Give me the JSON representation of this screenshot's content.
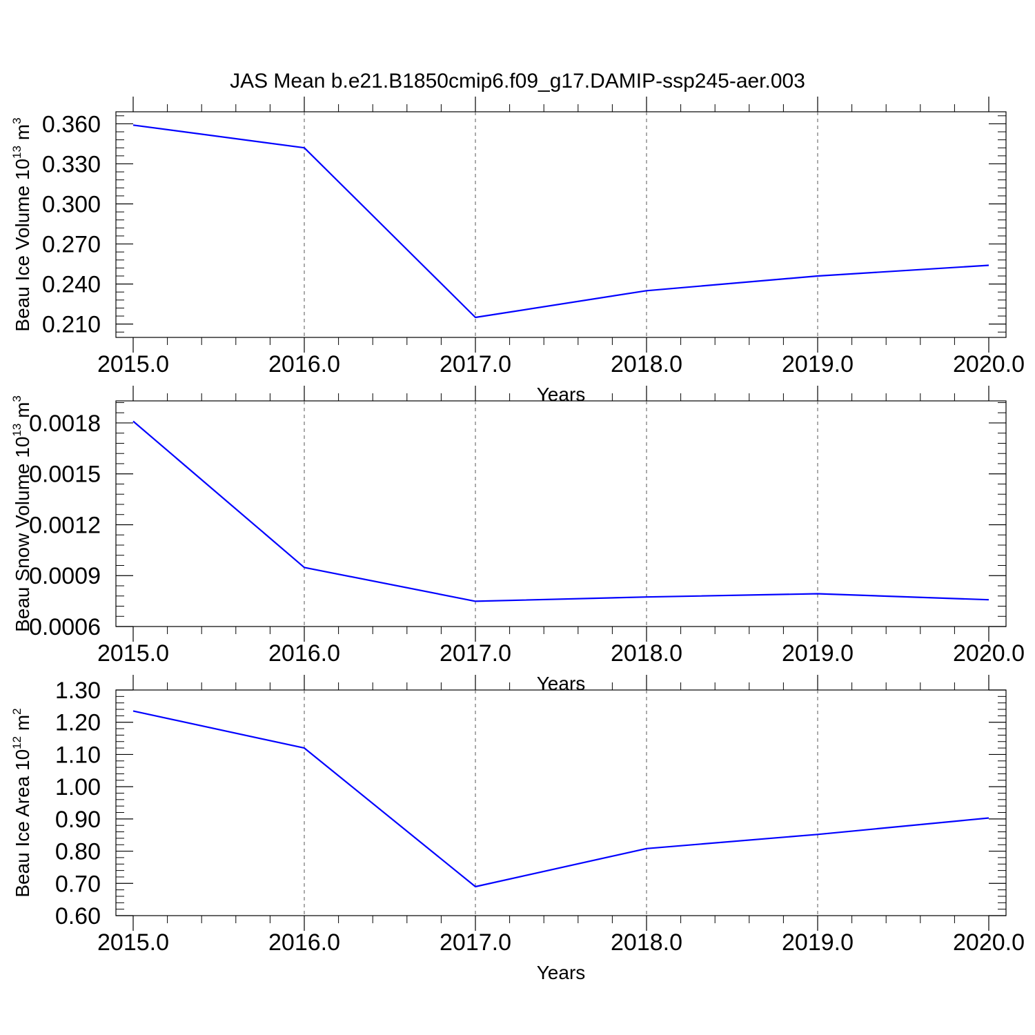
{
  "title": "JAS Mean b.e21.B1850cmip6.f09_g17.DAMIP-ssp245-aer.003",
  "colors": {
    "line": "#0000ff",
    "axis": "#000000",
    "grid": "#555555"
  },
  "chart_data": [
    {
      "type": "line",
      "ylabel_main": "Beau Ice Volume 10",
      "ylabel_exp": "13",
      "ylabel_unit": "m",
      "ylabel_unit_exp": "3",
      "xlabel": "Years",
      "xlim": [
        2015.0,
        2020.0
      ],
      "ylim": [
        0.2,
        0.369
      ],
      "x_ticks": [
        "2015.0",
        "2016.0",
        "2017.0",
        "2018.0",
        "2019.0",
        "2020.0"
      ],
      "y_ticks": [
        "0.210",
        "0.240",
        "0.270",
        "0.300",
        "0.330",
        "0.360"
      ],
      "grid_x": true,
      "series": [
        {
          "x": [
            2015,
            2016,
            2017,
            2018,
            2019,
            2020
          ],
          "y": [
            0.359,
            0.342,
            0.215,
            0.235,
            0.246,
            0.254
          ]
        }
      ]
    },
    {
      "type": "line",
      "ylabel_main": "Beau Snow Volume 10",
      "ylabel_exp": "13",
      "ylabel_unit": "m",
      "ylabel_unit_exp": "3",
      "xlabel": "Years",
      "xlim": [
        2015.0,
        2020.0
      ],
      "ylim": [
        0.0006,
        0.00193
      ],
      "x_ticks": [
        "2015.0",
        "2016.0",
        "2017.0",
        "2018.0",
        "2019.0",
        "2020.0"
      ],
      "y_ticks": [
        "0.0006",
        "0.0009",
        "0.0012",
        "0.0015",
        "0.0018"
      ],
      "grid_x": true,
      "series": [
        {
          "x": [
            2015,
            2016,
            2017,
            2018,
            2019,
            2020
          ],
          "y": [
            0.00181,
            0.000948,
            0.000749,
            0.000774,
            0.000793,
            0.000758
          ]
        }
      ]
    },
    {
      "type": "line",
      "ylabel_main": "Beau Ice Area 10",
      "ylabel_exp": "12",
      "ylabel_unit": "m",
      "ylabel_unit_exp": "2",
      "xlabel": "Years",
      "xlim": [
        2015.0,
        2020.0
      ],
      "ylim": [
        0.6,
        1.3
      ],
      "x_ticks": [
        "2015.0",
        "2016.0",
        "2017.0",
        "2018.0",
        "2019.0",
        "2020.0"
      ],
      "y_ticks": [
        "0.60",
        "0.70",
        "0.80",
        "0.90",
        "1.00",
        "1.10",
        "1.20",
        "1.30"
      ],
      "grid_x": true,
      "series": [
        {
          "x": [
            2015,
            2016,
            2017,
            2018,
            2019,
            2020
          ],
          "y": [
            1.235,
            1.12,
            0.69,
            0.808,
            0.852,
            0.903
          ]
        }
      ]
    }
  ]
}
